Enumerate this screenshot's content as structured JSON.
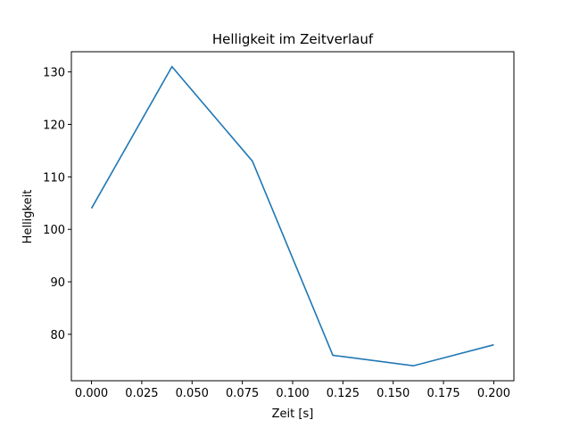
{
  "chart_data": {
    "type": "line",
    "title": "Helligkeit im Zeitverlauf",
    "xlabel": "Zeit [s]",
    "ylabel": "Helligkeit",
    "x": [
      0.0,
      0.04,
      0.08,
      0.12,
      0.16,
      0.2
    ],
    "series": [
      {
        "name": "Helligkeit",
        "values": [
          104,
          131,
          113,
          76,
          74,
          78
        ],
        "color": "#1f77b4"
      }
    ],
    "xlim": [
      -0.01,
      0.21
    ],
    "ylim": [
      71.15,
      133.85
    ],
    "xticks": [
      0.0,
      0.025,
      0.05,
      0.075,
      0.1,
      0.125,
      0.15,
      0.175,
      0.2
    ],
    "xtick_labels": [
      "0.000",
      "0.025",
      "0.050",
      "0.075",
      "0.100",
      "0.125",
      "0.150",
      "0.175",
      "0.200"
    ],
    "yticks": [
      80,
      90,
      100,
      110,
      120,
      130
    ],
    "ytick_labels": [
      "80",
      "90",
      "100",
      "110",
      "120",
      "130"
    ],
    "grid": false,
    "legend": "none"
  }
}
